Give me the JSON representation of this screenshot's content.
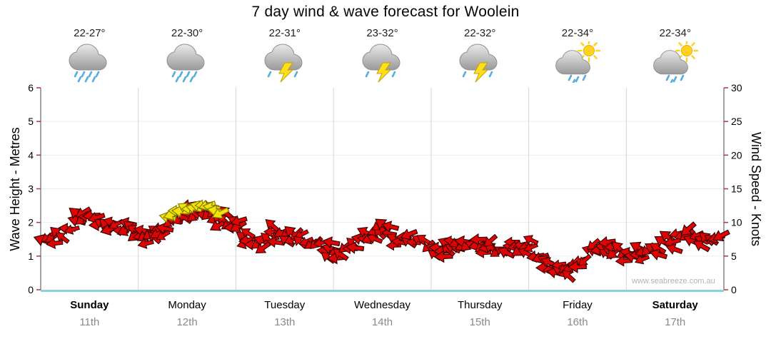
{
  "title": "7 day wind & wave forecast for Woolein",
  "watermark": "www.seabreeze.com.au",
  "left_axis": {
    "label": "Wave Height - Metres",
    "ticks": [
      0,
      1,
      2,
      3,
      4,
      5,
      6
    ],
    "range": [
      0,
      6
    ]
  },
  "right_axis": {
    "label": "Wind Speed - Knots",
    "ticks": [
      0,
      5,
      10,
      15,
      20,
      25,
      30
    ],
    "range": [
      0,
      30
    ]
  },
  "days": [
    {
      "name": "Sunday",
      "date": "11th",
      "temp": "22-27°",
      "icon": "rain-cloud",
      "bold": true
    },
    {
      "name": "Monday",
      "date": "12th",
      "temp": "22-30°",
      "icon": "rain-cloud",
      "bold": false
    },
    {
      "name": "Tuesday",
      "date": "13th",
      "temp": "22-31°",
      "icon": "storm-cloud",
      "bold": false
    },
    {
      "name": "Wednesday",
      "date": "14th",
      "temp": "23-32°",
      "icon": "storm-cloud",
      "bold": false
    },
    {
      "name": "Thursday",
      "date": "15th",
      "temp": "22-32°",
      "icon": "storm-cloud",
      "bold": false
    },
    {
      "name": "Friday",
      "date": "16th",
      "temp": "22-34°",
      "icon": "sun-shower",
      "bold": false
    },
    {
      "name": "Saturday",
      "date": "17th",
      "temp": "22-34°",
      "icon": "sun-shower",
      "bold": true
    }
  ],
  "colors": {
    "arrow_red": "#e00505",
    "arrow_yellow": "#f2e30a",
    "tick_red": "#c03030",
    "baseline_cyan": "#86d2de",
    "gridline": "#d4d4d4"
  },
  "chart_data": {
    "type": "line",
    "title": "7 day wind & wave forecast for Woolein",
    "x_unit": "day (0 = start of Sunday, 7 = end of Saturday)",
    "xlim": [
      0,
      7
    ],
    "grid": "vertical solid at day boundaries, faint horizontal per metre",
    "legend": "none",
    "marker": "wind-arrow",
    "y_axes": [
      {
        "side": "left",
        "label": "Wave Height - Metres",
        "range": [
          0,
          6
        ]
      },
      {
        "side": "right",
        "label": "Wind Speed - Knots",
        "range": [
          0,
          30
        ]
      }
    ],
    "categories": [
      "Sunday 11th",
      "Monday 12th",
      "Tuesday 13th",
      "Wednesday 14th",
      "Thursday 15th",
      "Friday 16th",
      "Saturday 17th"
    ],
    "series": [
      {
        "name": "Wind speed",
        "unit": "knots",
        "color": "#e00505",
        "points": [
          [
            0.0,
            6.8
          ],
          [
            0.1,
            7.5
          ],
          [
            0.25,
            8.5
          ],
          [
            0.4,
            10.5
          ],
          [
            0.5,
            11.0
          ],
          [
            0.6,
            10.0
          ],
          [
            0.75,
            9.5
          ],
          [
            0.9,
            9.0
          ],
          [
            1.05,
            8.0
          ],
          [
            1.2,
            8.5
          ],
          [
            1.35,
            10.2
          ],
          [
            1.5,
            11.2
          ],
          [
            1.65,
            11.6
          ],
          [
            1.8,
            11.0
          ],
          [
            1.9,
            10.2
          ],
          [
            2.0,
            9.2
          ],
          [
            2.1,
            7.8
          ],
          [
            2.2,
            6.6
          ],
          [
            2.35,
            8.0
          ],
          [
            2.5,
            8.8
          ],
          [
            2.65,
            8.0
          ],
          [
            2.8,
            7.0
          ],
          [
            2.95,
            6.0
          ],
          [
            3.05,
            5.6
          ],
          [
            3.2,
            6.6
          ],
          [
            3.35,
            7.8
          ],
          [
            3.5,
            8.3
          ],
          [
            3.65,
            7.6
          ],
          [
            3.8,
            7.3
          ],
          [
            3.95,
            7.0
          ],
          [
            4.1,
            6.0
          ],
          [
            4.25,
            5.6
          ],
          [
            4.4,
            6.4
          ],
          [
            4.55,
            6.0
          ],
          [
            4.7,
            5.6
          ],
          [
            4.85,
            6.0
          ],
          [
            5.0,
            6.3
          ],
          [
            5.1,
            5.0
          ],
          [
            5.2,
            3.6
          ],
          [
            5.3,
            2.6
          ],
          [
            5.42,
            3.2
          ],
          [
            5.55,
            4.6
          ],
          [
            5.7,
            6.3
          ],
          [
            5.85,
            6.0
          ],
          [
            6.0,
            5.6
          ],
          [
            6.1,
            4.9
          ],
          [
            6.25,
            6.1
          ],
          [
            6.4,
            7.3
          ],
          [
            6.55,
            7.9
          ],
          [
            6.7,
            7.6
          ],
          [
            6.85,
            7.9
          ],
          [
            7.0,
            8.1
          ]
        ]
      }
    ],
    "highlight": {
      "label": "strong wind arrows",
      "color": "#f2e30a",
      "x_range": [
        1.3,
        1.85
      ]
    }
  }
}
